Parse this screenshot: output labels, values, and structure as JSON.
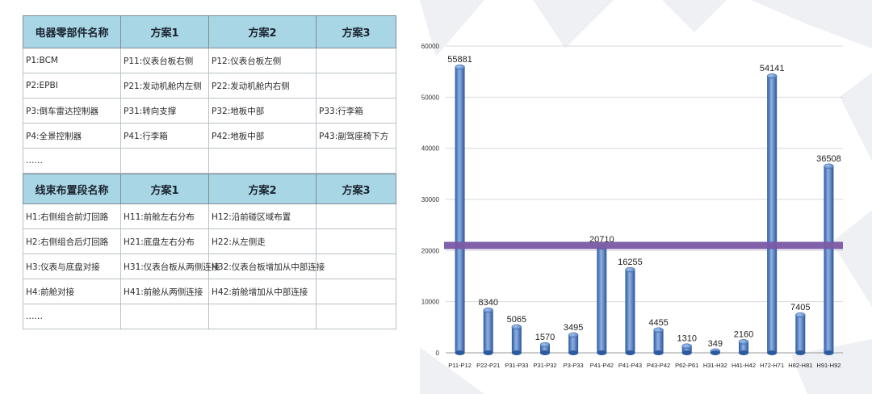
{
  "table1": {
    "headers": [
      "电器零部件名称",
      "方案1",
      "方案2",
      "方案3"
    ],
    "rows": [
      [
        "P1:BCM",
        "P11:仪表台板右侧",
        "P12:仪表台板左侧",
        ""
      ],
      [
        "P2:EPBI",
        "P21:发动机舱内左侧",
        "P22:发动机舱内右侧",
        ""
      ],
      [
        "P3:倒车雷达控制器",
        "P31:转向支撑",
        "P32:地板中部",
        "P33:行李箱"
      ],
      [
        "P4:全景控制器",
        "P41:行李箱",
        "P42:地板中部",
        "P43:副驾座椅下方"
      ],
      [
        "……",
        "",
        "",
        ""
      ]
    ]
  },
  "table2": {
    "headers": [
      "线束布置段名称",
      "方案1",
      "方案2",
      "方案3"
    ],
    "rows": [
      [
        "H1:右侧组合前灯回路",
        "H11:前舱左右分布",
        "H12:沿前碰区域布置",
        ""
      ],
      [
        "H2:右侧组合后灯回路",
        "H21:底盘左右分布",
        "H22:从左侧走",
        ""
      ],
      [
        "H3:仪表与底盘对接",
        "H31:仪表台板从两侧连接",
        "H32:仪表台板增加从中部连接",
        ""
      ],
      [
        "H4:前舱对接",
        "H41:前舱从两侧连接",
        "H42:前舱增加从中部连接",
        ""
      ],
      [
        "……",
        "",
        "",
        ""
      ]
    ]
  },
  "chart_data": {
    "type": "bar",
    "categories": [
      "P11-P12",
      "P22-P21",
      "P31-P33",
      "P31-P32",
      "P3-P33",
      "P41-P42",
      "P41-P43",
      "P43-P42",
      "P62-P61",
      "H31-H32",
      "H41-H42",
      "H72-H71",
      "H82-H81",
      "H91-H92"
    ],
    "values": [
      55881,
      8340,
      5065,
      1570,
      3495,
      20710,
      16255,
      4455,
      1310,
      349,
      2160,
      54141,
      7405,
      36508
    ],
    "data_labels": [
      "55881",
      "8340",
      "5065",
      "1570",
      "3495",
      "20710",
      "16255",
      "4455",
      "1310",
      "349",
      "2160",
      "54141",
      "7405",
      "36508"
    ],
    "yticks": [
      0,
      10000,
      20000,
      30000,
      40000,
      50000,
      60000
    ],
    "ylim": [
      0,
      60000
    ],
    "reference_line": 21000,
    "grid": true,
    "title": "",
    "xlabel": "",
    "ylabel": "",
    "colors": {
      "bar": "#3d6cb5",
      "bar_light": "#8fb2e3",
      "reference": "#7b5aa6",
      "grid": "#d9d9d9"
    }
  }
}
